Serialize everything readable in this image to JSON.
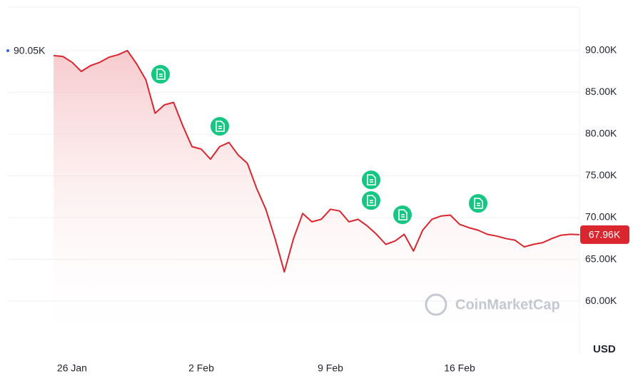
{
  "chart_data": {
    "type": "line",
    "categories": [
      null,
      null,
      "26 Jan",
      null,
      null,
      null,
      null,
      null,
      null,
      null,
      null,
      null,
      null,
      null,
      null,
      null,
      "2 Feb",
      null,
      null,
      null,
      null,
      null,
      null,
      null,
      null,
      null,
      null,
      null,
      null,
      null,
      "9 Feb",
      null,
      null,
      null,
      null,
      null,
      null,
      null,
      null,
      null,
      null,
      null,
      null,
      null,
      "16 Feb",
      null,
      null,
      null,
      null,
      null,
      null,
      null,
      null,
      null,
      null,
      null,
      null,
      null
    ],
    "series": [
      {
        "name": "USD",
        "color": "#d9262f",
        "values": [
          89.4,
          89.3,
          88.6,
          87.5,
          88.2,
          88.6,
          89.2,
          89.5,
          90.0,
          88.4,
          86.5,
          82.5,
          83.5,
          83.8,
          81.0,
          78.5,
          78.2,
          77.0,
          78.5,
          79.0,
          77.5,
          76.5,
          73.5,
          71.0,
          67.5,
          63.5,
          67.5,
          70.5,
          69.5,
          69.8,
          71.0,
          70.8,
          69.5,
          69.8,
          69.0,
          68.0,
          66.8,
          67.2,
          68.0,
          66.0,
          68.5,
          69.8,
          70.2,
          70.3,
          69.2,
          68.8,
          68.5,
          68.0,
          67.8,
          67.5,
          67.3,
          66.5,
          66.8,
          67.0,
          67.5,
          67.9,
          68.0,
          67.96
        ]
      }
    ],
    "ylim": [
      54.2,
      95.2
    ],
    "yticks": [
      {
        "value": 60,
        "label": "60.00K"
      },
      {
        "value": 65,
        "label": "65.00K"
      },
      {
        "value": 70,
        "label": "70.00K"
      },
      {
        "value": 75,
        "label": "75.00K"
      },
      {
        "value": 80,
        "label": "80.00K"
      },
      {
        "value": 85,
        "label": "85.00K"
      },
      {
        "value": 90,
        "label": "90.00K"
      }
    ],
    "grid": true,
    "high_label": "90.05K",
    "last_price_label": "67.96K",
    "currency_label": "USD",
    "watermark": "CoinMarketCap"
  }
}
